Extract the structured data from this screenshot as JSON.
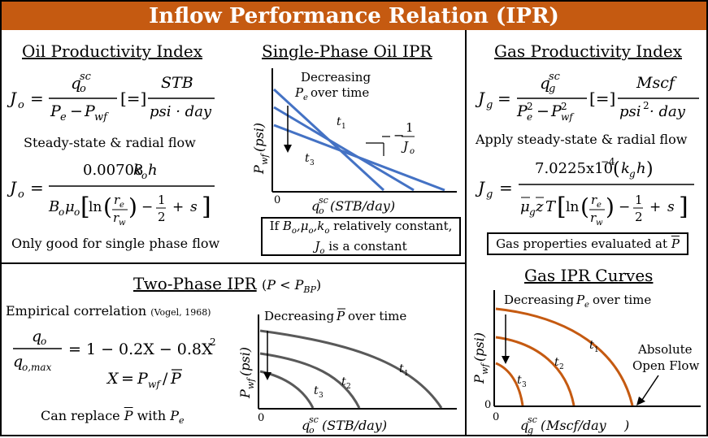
{
  "title": "Inflow Performance Relation (IPR)",
  "oil_pi": {
    "heading": "Oil Productivity Index",
    "steady_state": "Steady-state & radial flow",
    "note": "Only good for single phase flow",
    "units_num": "STB",
    "units_den": "psi · day",
    "const": "0.00708"
  },
  "single_phase": {
    "heading": "Single-Phase Oil IPR",
    "annotation_1": "Decreasing",
    "annotation_2": "over time",
    "slope_label": "1",
    "t1": "t",
    "t3": "t",
    "origin": "0",
    "box_line1": "relatively constant,",
    "box_line2": "is a constant",
    "box_if": "If"
  },
  "two_phase": {
    "heading": "Two-Phase IPR",
    "empirical": "Empirical correlation",
    "citation": "(Vogel, 1968)",
    "eq_rhs": "= 1 − 0.2X − 0.8X",
    "replace_note_1": "Can replace",
    "replace_note_2": "with",
    "annotation": "Decreasing",
    "annotation_2": "over time",
    "origin": "0"
  },
  "gas_pi": {
    "heading": "Gas Productivity Index",
    "steady_state": "Apply steady-state & radial flow",
    "units_num": "Mscf",
    "units_den": "psi",
    "units_den_2": " · day",
    "const": "7.0225x10",
    "box": "Gas properties evaluated at"
  },
  "gas_ipr": {
    "heading": "Gas IPR Curves",
    "annotation_1": "Decreasing",
    "annotation_2": "over time",
    "aof_1": "Absolute",
    "aof_2": "Open Flow",
    "origin": "0",
    "xunit": "Mscf/day"
  },
  "colors": {
    "title_bg": "#c55a11",
    "blue_lines": "#4472c4",
    "gray_curves": "#595959",
    "orange_curves": "#c55a11"
  }
}
